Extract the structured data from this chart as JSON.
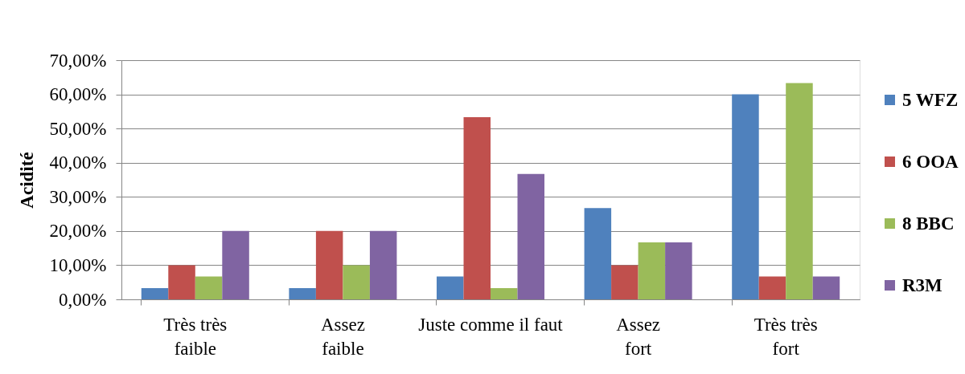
{
  "chart_data": {
    "type": "bar",
    "ylabel": "Acidité",
    "categories": [
      "Très très faible",
      "Assez faible",
      "Juste comme il faut",
      "Assez fort",
      "Très très fort"
    ],
    "series": [
      {
        "name": "5 WFZ",
        "color": "#4f81bd",
        "values": [
          3.3,
          3.3,
          6.7,
          26.7,
          60
        ]
      },
      {
        "name": "6 OOA",
        "color": "#c0504d",
        "values": [
          10,
          20,
          53.3,
          10,
          6.7
        ]
      },
      {
        "name": "8 BBC",
        "color": "#9bbb59",
        "values": [
          6.7,
          10,
          3.3,
          16.7,
          63.3
        ]
      },
      {
        "name": "R3M",
        "color": "#8064a2",
        "values": [
          20,
          20,
          36.7,
          16.7,
          6.7
        ]
      }
    ],
    "ylim": [
      0,
      70
    ],
    "yticks": [
      {
        "value": 0,
        "label": "0,00%"
      },
      {
        "value": 10,
        "label": "10,00%"
      },
      {
        "value": 20,
        "label": "20,00%"
      },
      {
        "value": 30,
        "label": "30,00%"
      },
      {
        "value": 40,
        "label": "40,00%"
      },
      {
        "value": 50,
        "label": "50,00%"
      },
      {
        "value": 60,
        "label": "60,00%"
      },
      {
        "value": 70,
        "label": "70,00%"
      }
    ],
    "grid": "y",
    "legend": "right"
  }
}
